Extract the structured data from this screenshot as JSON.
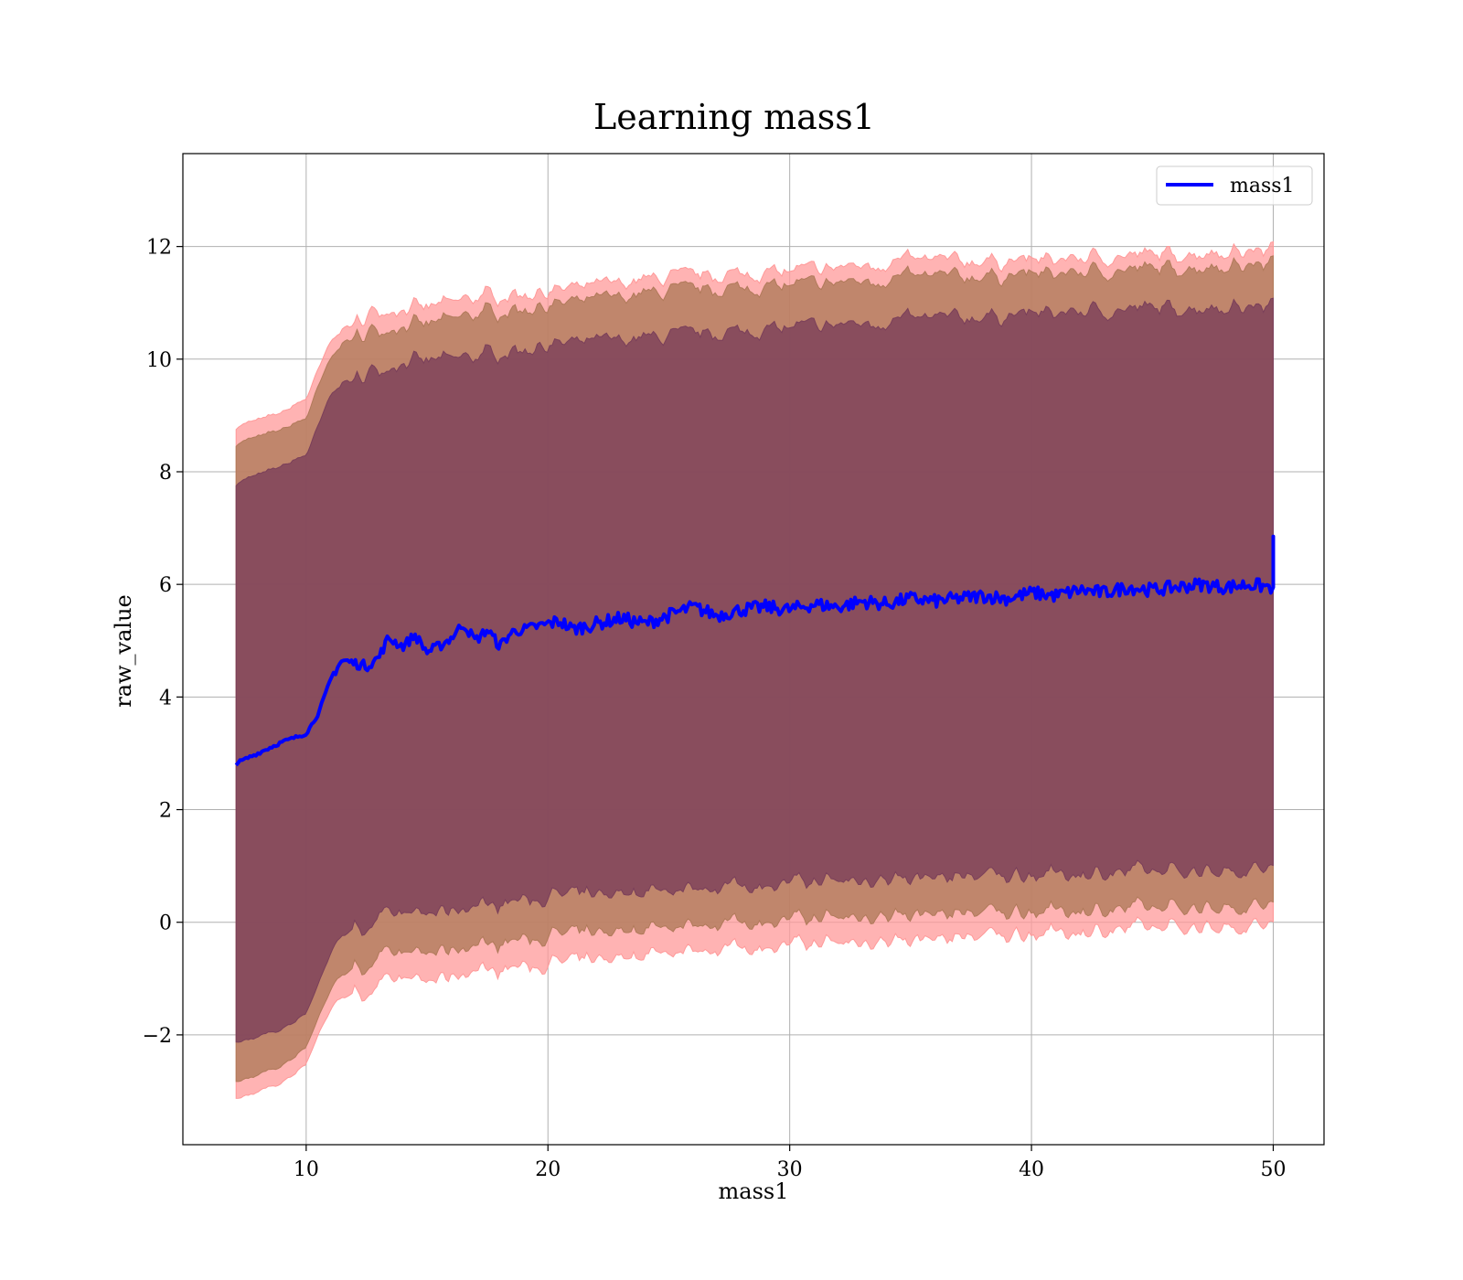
{
  "chart_data": {
    "type": "line",
    "title": "Learning mass1",
    "xlabel": "mass1",
    "ylabel": "raw_value",
    "xlim": [
      4.9,
      52.1
    ],
    "ylim": [
      -3.95,
      13.65
    ],
    "x_ticks": [
      10,
      20,
      30,
      40,
      50
    ],
    "y_ticks": [
      -2,
      0,
      2,
      4,
      6,
      8,
      10,
      12
    ],
    "x_tick_labels": [
      "10",
      "20",
      "30",
      "40",
      "50"
    ],
    "y_tick_labels": [
      "−2",
      "0",
      "2",
      "4",
      "6",
      "8",
      "10",
      "12"
    ],
    "grid": true,
    "legend": {
      "position": "top-right",
      "entries": [
        "mass1"
      ]
    },
    "x_range": [
      7.1,
      50.0
    ],
    "series": [
      {
        "name": "mass1",
        "color": "#0000ff",
        "x": [
          7.1,
          8,
          9,
          10,
          10.5,
          11,
          11.3,
          11.5,
          12,
          12.5,
          13,
          13.4,
          14,
          14.5,
          15,
          15.5,
          16,
          16.5,
          17,
          17.5,
          18,
          18.5,
          19,
          19.5,
          20,
          20.5,
          21,
          22,
          23,
          24,
          25,
          26,
          27,
          28,
          29,
          30,
          31,
          32,
          33,
          34,
          35,
          36,
          37,
          38,
          39,
          40,
          41,
          42,
          43,
          44,
          45,
          46,
          47,
          48,
          49,
          49.9,
          50.0
        ],
        "y": [
          2.82,
          3.0,
          3.2,
          3.35,
          3.7,
          4.3,
          4.55,
          4.65,
          4.6,
          4.55,
          4.7,
          5.05,
          4.9,
          5.1,
          4.8,
          4.9,
          5.05,
          5.3,
          5.0,
          5.2,
          4.9,
          5.15,
          5.2,
          5.25,
          5.3,
          5.35,
          5.2,
          5.3,
          5.4,
          5.3,
          5.45,
          5.6,
          5.45,
          5.55,
          5.6,
          5.55,
          5.65,
          5.6,
          5.7,
          5.65,
          5.75,
          5.7,
          5.75,
          5.8,
          5.75,
          5.85,
          5.8,
          5.9,
          5.85,
          5.95,
          5.9,
          5.95,
          6.0,
          5.95,
          6.0,
          5.95,
          6.85
        ]
      }
    ],
    "bands": [
      {
        "color": "#ff9999",
        "x": [
          7.1,
          9,
          10,
          10.5,
          11,
          11.5,
          12,
          13,
          14,
          15,
          17,
          20,
          25,
          30,
          35,
          40,
          45,
          50
        ],
        "upper": [
          8.8,
          9.05,
          9.3,
          9.8,
          10.3,
          10.55,
          10.6,
          10.9,
          10.9,
          10.9,
          11.1,
          11.2,
          11.45,
          11.55,
          11.75,
          11.75,
          11.85,
          11.95
        ],
        "lower": [
          -3.15,
          -2.85,
          -2.5,
          -2.0,
          -1.55,
          -1.3,
          -1.3,
          -1.15,
          -1.0,
          -1.05,
          -0.85,
          -0.75,
          -0.5,
          -0.4,
          -0.3,
          -0.2,
          -0.1,
          -0.05
        ]
      },
      {
        "color": "#b07a5a",
        "x": [
          7.1,
          9,
          10,
          10.5,
          11,
          11.5,
          12,
          13,
          14,
          15,
          17,
          20,
          25,
          30,
          35,
          40,
          45,
          50
        ],
        "upper": [
          8.5,
          8.75,
          8.95,
          9.5,
          10.0,
          10.3,
          10.35,
          10.55,
          10.6,
          10.6,
          10.8,
          10.95,
          11.2,
          11.3,
          11.45,
          11.5,
          11.6,
          11.7
        ],
        "lower": [
          -2.85,
          -2.55,
          -2.2,
          -1.7,
          -1.2,
          -0.9,
          -0.85,
          -0.65,
          -0.55,
          -0.55,
          -0.4,
          -0.25,
          -0.05,
          0.05,
          0.15,
          0.2,
          0.25,
          0.3
        ]
      },
      {
        "color": "#7a3f5a",
        "x": [
          7.1,
          9,
          10,
          10.5,
          11,
          11.5,
          12,
          13,
          14,
          15,
          17,
          20,
          25,
          30,
          35,
          40,
          45,
          50
        ],
        "upper": [
          7.8,
          8.1,
          8.3,
          8.8,
          9.35,
          9.6,
          9.6,
          9.85,
          9.95,
          9.95,
          10.05,
          10.25,
          10.4,
          10.55,
          10.7,
          10.8,
          10.9,
          10.95
        ],
        "lower": [
          -2.15,
          -1.9,
          -1.6,
          -1.1,
          -0.55,
          -0.2,
          -0.15,
          0.05,
          0.15,
          0.15,
          0.3,
          0.45,
          0.6,
          0.7,
          0.8,
          0.85,
          0.9,
          0.95
        ]
      }
    ]
  }
}
